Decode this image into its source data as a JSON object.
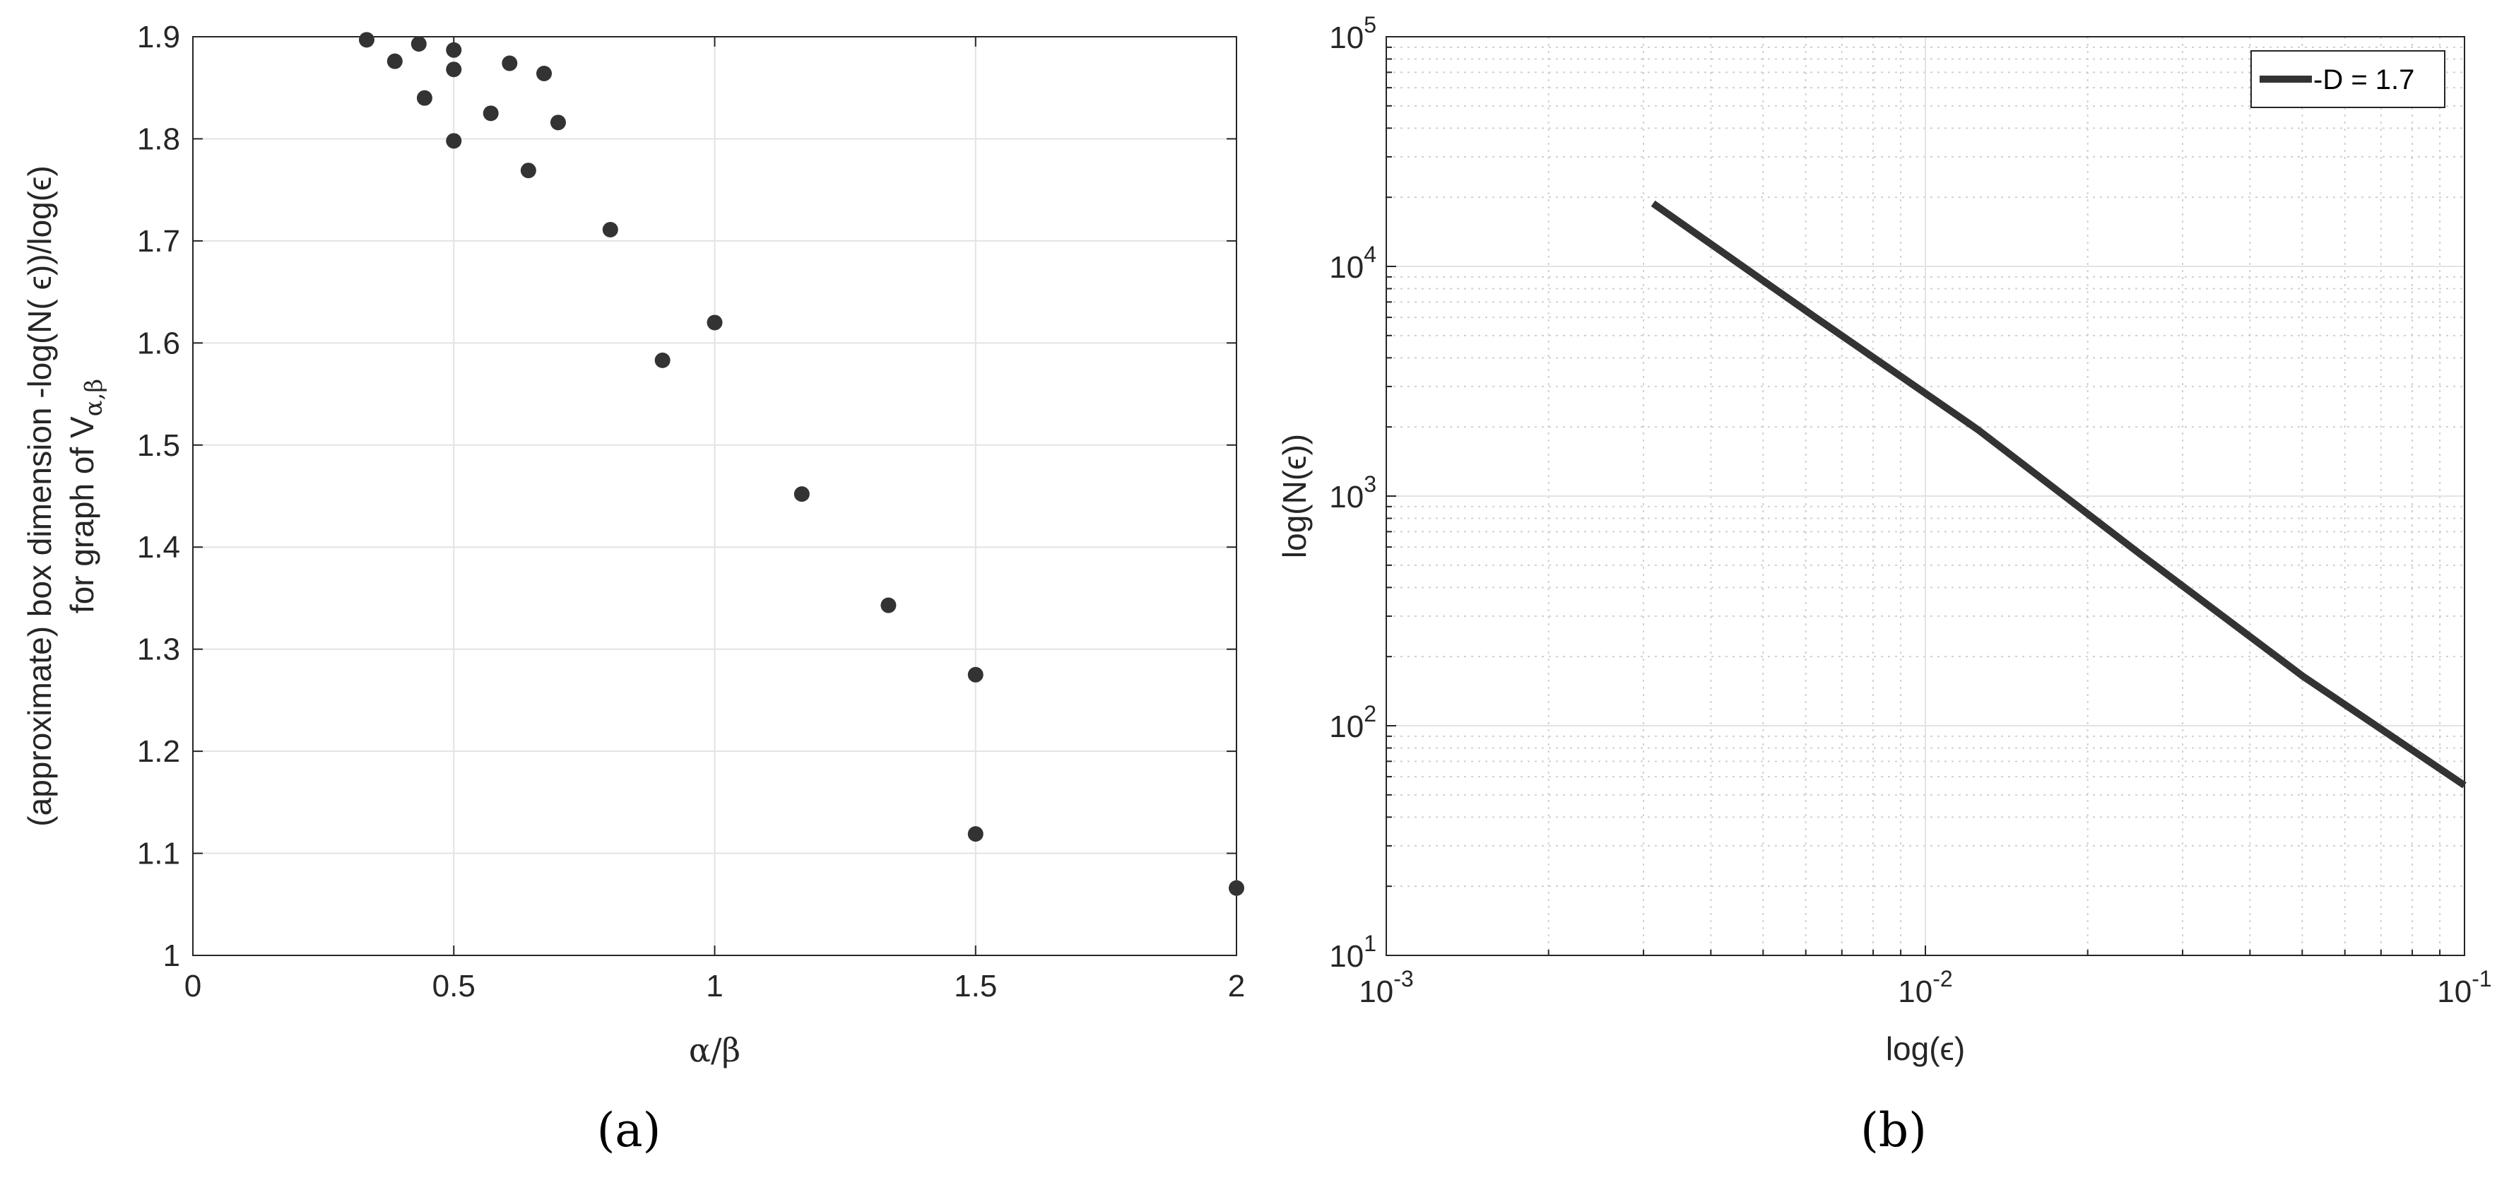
{
  "chart_data": [
    {
      "type": "scatter",
      "panel_label": "(a)",
      "xlabel": "α/β",
      "ylabel_line1": "(approximate) box dimension -log(N( ϵ))/log(ϵ)",
      "ylabel_line2_prefix": "for graph of V",
      "ylabel_line2_subscript": "α,β",
      "xlim": [
        0,
        2
      ],
      "ylim": [
        1,
        1.9
      ],
      "xticks": [
        0,
        0.5,
        1,
        1.5,
        2
      ],
      "xtick_labels": [
        "0",
        "0.5",
        "1",
        "1.5",
        "2"
      ],
      "yticks": [
        1,
        1.1,
        1.2,
        1.3,
        1.4,
        1.5,
        1.6,
        1.7,
        1.8,
        1.9
      ],
      "ytick_labels": [
        "1",
        "1.1",
        "1.2",
        "1.3",
        "1.4",
        "1.5",
        "1.6",
        "1.7",
        "1.8",
        "1.9"
      ],
      "grid": true,
      "marker_color": "#333333",
      "points": [
        {
          "x": 0.333,
          "y": 1.897
        },
        {
          "x": 0.387,
          "y": 1.876
        },
        {
          "x": 0.433,
          "y": 1.893
        },
        {
          "x": 0.444,
          "y": 1.84
        },
        {
          "x": 0.5,
          "y": 1.887
        },
        {
          "x": 0.5,
          "y": 1.868
        },
        {
          "x": 0.5,
          "y": 1.798
        },
        {
          "x": 0.571,
          "y": 1.825
        },
        {
          "x": 0.607,
          "y": 1.874
        },
        {
          "x": 0.643,
          "y": 1.769
        },
        {
          "x": 0.673,
          "y": 1.864
        },
        {
          "x": 0.7,
          "y": 1.816
        },
        {
          "x": 0.8,
          "y": 1.711
        },
        {
          "x": 0.9,
          "y": 1.583
        },
        {
          "x": 1.0,
          "y": 1.62
        },
        {
          "x": 1.167,
          "y": 1.452
        },
        {
          "x": 1.333,
          "y": 1.343
        },
        {
          "x": 1.5,
          "y": 1.275
        },
        {
          "x": 1.5,
          "y": 1.119
        },
        {
          "x": 2.0,
          "y": 1.066
        }
      ]
    },
    {
      "type": "line",
      "panel_label": "(b)",
      "xlabel": "log(ϵ)",
      "ylabel": "log(N(ϵ))",
      "xscale": "log",
      "yscale": "log",
      "xlim": [
        0.001,
        0.1
      ],
      "ylim": [
        10,
        100000
      ],
      "xtick_labels": [
        {
          "base": "10",
          "exp": "-3"
        },
        {
          "base": "10",
          "exp": "-2"
        },
        {
          "base": "10",
          "exp": "-1"
        }
      ],
      "ytick_labels": [
        {
          "base": "10",
          "exp": "1"
        },
        {
          "base": "10",
          "exp": "2"
        },
        {
          "base": "10",
          "exp": "3"
        },
        {
          "base": "10",
          "exp": "4"
        },
        {
          "base": "10",
          "exp": "5"
        }
      ],
      "grid": true,
      "minor_grid": true,
      "legend_position": "top-right",
      "line_color": "#333333",
      "series": [
        {
          "name": "-D = 1.7",
          "x": [
            0.003125,
            0.00625,
            0.0125,
            0.025,
            0.05,
            0.1
          ],
          "y": [
            18800,
            6000,
            1950,
            560,
            165,
            55
          ]
        }
      ]
    }
  ]
}
